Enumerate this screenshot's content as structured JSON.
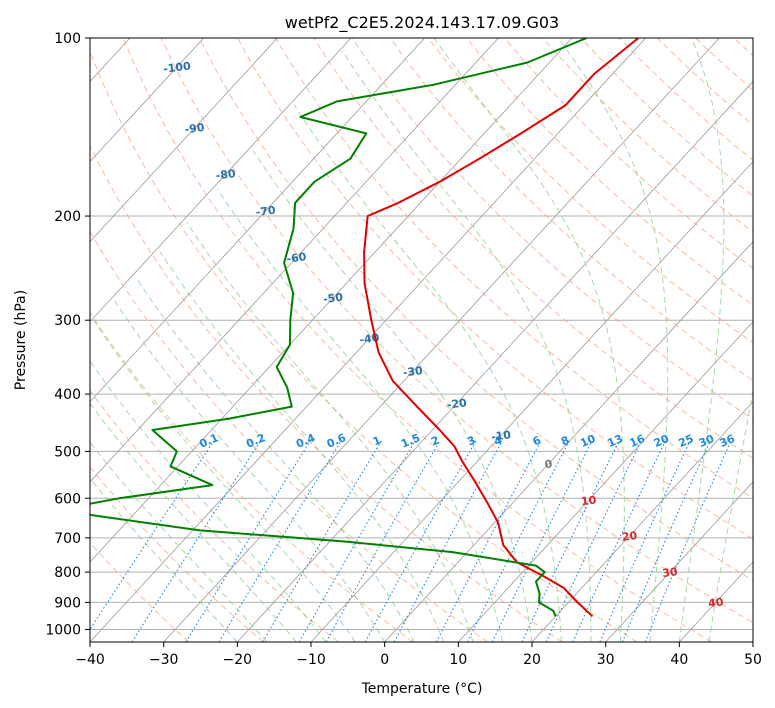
{
  "chart_data": {
    "type": "line",
    "subtype": "skew-t log-p diagram",
    "title": "wetPf2_C2E5.2024.143.17.09.G03",
    "xlabel": "Temperature (°C)",
    "ylabel": "Pressure (hPa)",
    "xlim": [
      -40,
      50
    ],
    "ylim": [
      1050,
      100
    ],
    "y_scale": "log",
    "grid": true,
    "x_ticks": [
      -40,
      -30,
      -20,
      -10,
      0,
      10,
      20,
      30,
      40,
      50
    ],
    "y_ticks": [
      100,
      200,
      300,
      400,
      500,
      600,
      700,
      800,
      900,
      1000
    ],
    "colors": {
      "temperature": "#e00000",
      "dewpoint": "#008000",
      "skewed_isotherms": "#9a9a9a",
      "dry_adiabats": "#f4a482",
      "moist_adiabats": "#8fcf8f",
      "mixing_ratio": "#1e88e5",
      "isotherm_labels_cold": "#2a6fa8",
      "isotherm_labels_warm": "#d62728",
      "zero_isotherm_label": "#777777"
    },
    "series": [
      {
        "key": "temperature",
        "points": [
          [
            -41,
            100
          ],
          [
            -42.5,
            115
          ],
          [
            -42.5,
            130
          ],
          [
            -45,
            145
          ],
          [
            -47.5,
            160
          ],
          [
            -50,
            175
          ],
          [
            -53,
            190
          ],
          [
            -55.5,
            200
          ],
          [
            -51.5,
            230
          ],
          [
            -47.5,
            260
          ],
          [
            -42,
            300
          ],
          [
            -37,
            340
          ],
          [
            -31.5,
            380
          ],
          [
            -25,
            420
          ],
          [
            -19,
            460
          ],
          [
            -15,
            490
          ],
          [
            -12,
            520
          ],
          [
            -8,
            560
          ],
          [
            -3.5,
            610
          ],
          [
            0.5,
            660
          ],
          [
            4,
            720
          ],
          [
            8,
            770
          ],
          [
            13,
            810
          ],
          [
            17.5,
            850
          ],
          [
            20.5,
            890
          ],
          [
            23.5,
            930
          ],
          [
            25,
            950
          ]
        ]
      },
      {
        "key": "dewpoint",
        "points": [
          [
            -48,
            100
          ],
          [
            -53,
            110
          ],
          [
            -63,
            120
          ],
          [
            -74,
            128
          ],
          [
            -77,
            136
          ],
          [
            -66,
            145
          ],
          [
            -65,
            160
          ],
          [
            -67,
            175
          ],
          [
            -67,
            190
          ],
          [
            -64,
            210
          ],
          [
            -61,
            240
          ],
          [
            -56,
            270
          ],
          [
            -53,
            300
          ],
          [
            -50,
            330
          ],
          [
            -49,
            360
          ],
          [
            -45,
            390
          ],
          [
            -42,
            420
          ],
          [
            -49,
            440
          ],
          [
            -58,
            460
          ],
          [
            -52,
            500
          ],
          [
            -51,
            530
          ],
          [
            -43,
            570
          ],
          [
            -54,
            600
          ],
          [
            -59,
            620
          ],
          [
            -56,
            640
          ],
          [
            -39,
            680
          ],
          [
            -18,
            710
          ],
          [
            -2,
            740
          ],
          [
            11,
            780
          ],
          [
            13,
            800
          ],
          [
            13,
            830
          ],
          [
            15,
            870
          ],
          [
            16,
            900
          ],
          [
            19,
            930
          ],
          [
            20,
            950
          ]
        ]
      }
    ],
    "isotherm_labels": [
      "-100",
      "-90",
      "-80",
      "-70",
      "-60",
      "-50",
      "-40",
      "-30",
      "-20",
      "-10",
      "0",
      "10",
      "20",
      "30",
      "40"
    ],
    "mixing_ratio_labels": [
      "0.1",
      "0.2",
      "0.4",
      "0.6",
      "1",
      "1.5",
      "2",
      "3",
      "4",
      "6",
      "8",
      "10",
      "13",
      "16",
      "20",
      "25",
      "30",
      "36"
    ]
  }
}
